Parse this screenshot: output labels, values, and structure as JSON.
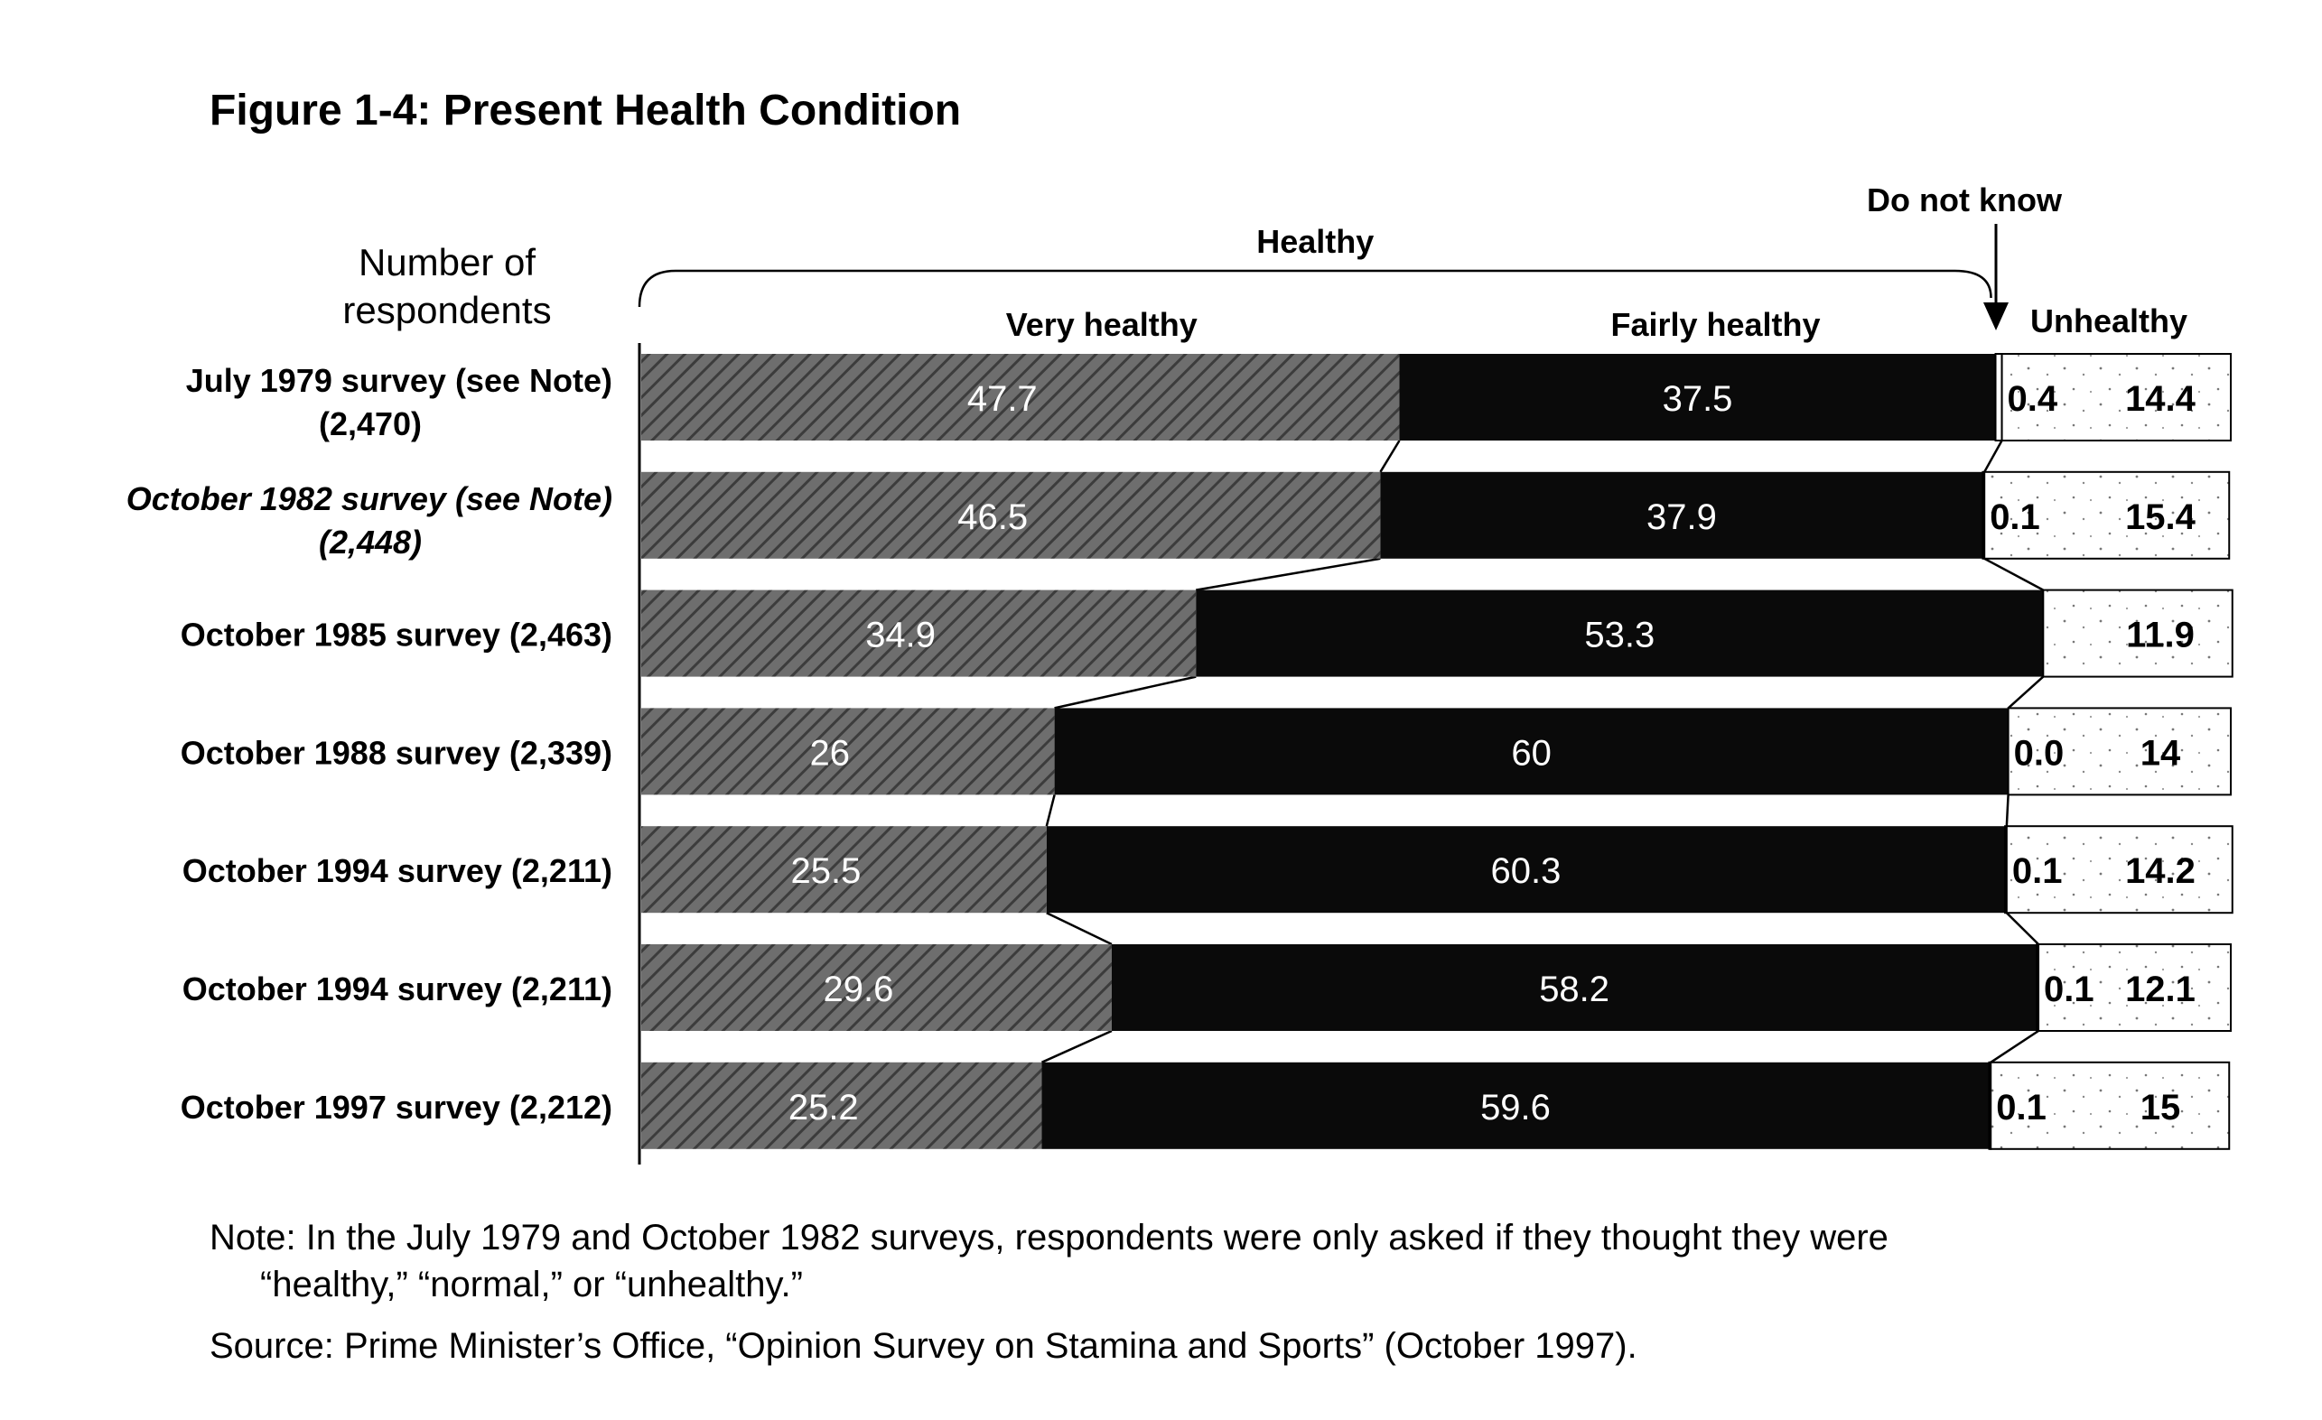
{
  "figure": {
    "title": "Figure 1-4: Present Health Condition",
    "note_line1": "Note: In the July 1979 and October 1982 surveys, respondents were only asked if they thought they were",
    "note_line2": "“healthy,” “normal,” or “unhealthy.”",
    "source": "Source: Prime Minister’s Office, “Opinion Survey on Stamina and Sports” (October 1997)."
  },
  "chart_data": {
    "type": "bar",
    "orientation": "horizontal",
    "stacked": true,
    "unit": "%",
    "xlim": [
      0,
      100
    ],
    "row_axis_title_line1": "Number of",
    "row_axis_title_line2": "respondents",
    "group_label": "Healthy",
    "callout_label": "Do not know",
    "categories": [
      {
        "line1": "July 1979 survey (see Note)",
        "line2": "(2,470)",
        "italic": false
      },
      {
        "line1": "October 1982 survey (see Note)",
        "line2": "(2,448)",
        "italic": true
      },
      {
        "line1": "October 1985 survey (2,463)",
        "line2": "",
        "italic": false
      },
      {
        "line1": "October 1988 survey (2,339)",
        "line2": "",
        "italic": false
      },
      {
        "line1": "October 1994 survey (2,211)",
        "line2": "",
        "italic": false
      },
      {
        "line1": "October 1994 survey (2,211)",
        "line2": "",
        "italic": false
      },
      {
        "line1": "October 1997 survey (2,212)",
        "line2": "",
        "italic": false
      }
    ],
    "series": [
      {
        "name": "Very healthy",
        "color": "#5a5a5a",
        "values": [
          47.7,
          46.5,
          34.9,
          26,
          25.5,
          29.6,
          25.2
        ],
        "labels": [
          "47.7",
          "46.5",
          "34.9",
          "26",
          "25.5",
          "29.6",
          "25.2"
        ]
      },
      {
        "name": "Fairly healthy",
        "color": "#0a0a0a",
        "values": [
          37.5,
          37.9,
          53.3,
          60,
          60.3,
          58.2,
          59.6
        ],
        "labels": [
          "37.5",
          "37.9",
          "53.3",
          "60",
          "60.3",
          "58.2",
          "59.6"
        ]
      },
      {
        "name": "Do not know",
        "color": "#ffffff",
        "values": [
          0.4,
          0.1,
          0,
          0.0,
          0.1,
          0.1,
          0.1
        ],
        "labels": [
          "0.4",
          "0.1",
          "",
          "0.0",
          "0.1",
          "0.1",
          "0.1"
        ]
      },
      {
        "name": "Unhealthy",
        "color": "#ffffff",
        "values": [
          14.4,
          15.4,
          11.9,
          14,
          14.2,
          12.1,
          15
        ],
        "labels": [
          "14.4",
          "15.4",
          "11.9",
          "14",
          "14.2",
          "12.1",
          "15"
        ]
      }
    ],
    "grid": false,
    "legend": "above bars"
  }
}
